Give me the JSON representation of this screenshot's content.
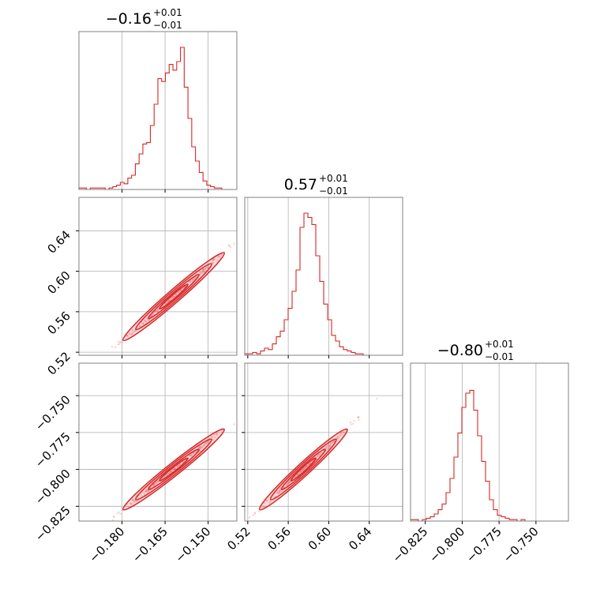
{
  "chart_data": {
    "type": "corner",
    "color": "#d62728",
    "parameters": [
      {
        "title_value": "−0.16",
        "title_plus": "+0.01",
        "title_minus": "−0.01",
        "median": -0.162,
        "range": [
          -0.195,
          -0.14
        ],
        "ticks": [
          -0.18,
          -0.165,
          -0.15
        ],
        "tick_labels": [
          "−0.180",
          "−0.165",
          "−0.150"
        ],
        "hist": [
          0.01,
          0.01,
          0.0,
          0.01,
          0.01,
          0.01,
          0.01,
          0.0,
          0.01,
          0.02,
          0.03,
          0.05,
          0.04,
          0.08,
          0.1,
          0.18,
          0.25,
          0.32,
          0.33,
          0.45,
          0.6,
          0.78,
          0.76,
          0.82,
          0.88,
          0.84,
          0.9,
          1.0,
          0.72,
          0.5,
          0.3,
          0.2,
          0.12,
          0.06,
          0.03,
          0.02,
          0.01,
          0.01,
          0.0,
          0.0,
          0.0,
          0.0
        ]
      },
      {
        "title_value": "0.57",
        "title_plus": "+0.01",
        "title_minus": "−0.01",
        "median": 0.575,
        "range": [
          0.517,
          0.673
        ],
        "ticks": [
          0.52,
          0.56,
          0.6,
          0.64
        ],
        "tick_labels": [
          "0.52",
          "0.56",
          "0.60",
          "0.64"
        ],
        "hist": [
          0.01,
          0.01,
          0.02,
          0.01,
          0.03,
          0.05,
          0.04,
          0.08,
          0.13,
          0.17,
          0.25,
          0.33,
          0.45,
          0.6,
          0.9,
          1.0,
          0.97,
          0.92,
          0.7,
          0.52,
          0.36,
          0.25,
          0.14,
          0.1,
          0.06,
          0.04,
          0.03,
          0.02,
          0.01,
          0.01,
          0.0,
          0.0,
          0.0,
          0.0,
          0.0,
          0.0,
          0.0,
          0.0,
          0.0,
          0.0
        ]
      },
      {
        "title_value": "−0.80",
        "title_plus": "+0.01",
        "title_minus": "−0.01",
        "median": -0.8,
        "range": [
          -0.835,
          -0.728
        ],
        "ticks": [
          -0.825,
          -0.8,
          -0.775,
          -0.75
        ],
        "tick_labels": [
          "−0.825",
          "−0.800",
          "−0.775",
          "−0.750"
        ],
        "hist": [
          0.01,
          0.01,
          0.0,
          0.01,
          0.02,
          0.03,
          0.05,
          0.08,
          0.12,
          0.2,
          0.3,
          0.45,
          0.62,
          0.8,
          0.9,
          0.92,
          0.78,
          0.6,
          0.42,
          0.28,
          0.15,
          0.08,
          0.04,
          0.03,
          0.02,
          0.01,
          0.01,
          0.0,
          0.01,
          0.0,
          0.0,
          0.0,
          0.0,
          0.0,
          0.0,
          0.0,
          0.0,
          0.0,
          0.0,
          0.0
        ]
      }
    ],
    "y_axis_ticks": {
      "row1": {
        "range": [
          0.517,
          0.673
        ],
        "ticks": [
          0.52,
          0.56,
          0.6,
          0.64
        ],
        "tick_labels": [
          "0.52",
          "0.56",
          "0.60",
          "0.64"
        ]
      },
      "row2": {
        "range": [
          -0.835,
          -0.728
        ],
        "ticks": [
          -0.825,
          -0.8,
          -0.775,
          -0.75
        ],
        "tick_labels": [
          "−0.825",
          "−0.800",
          "−0.775",
          "−0.750"
        ]
      }
    },
    "grid": true
  }
}
